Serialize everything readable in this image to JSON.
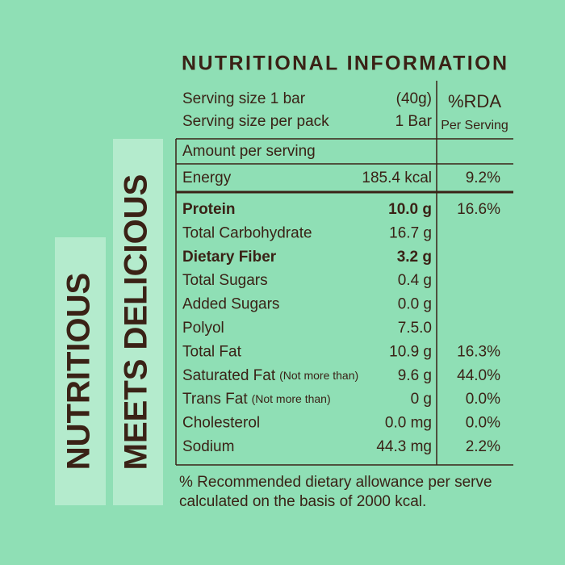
{
  "badges": [
    "NUTRITIOUS",
    "MEETS DELICIOUS"
  ],
  "title": "NUTRITIONAL INFORMATION",
  "serving": {
    "rows": [
      {
        "label": "Serving size 1 bar",
        "amount": "(40g)"
      },
      {
        "label": "Serving size per pack",
        "amount": "1 Bar"
      }
    ],
    "rda_header": "%RDA",
    "rda_subheader": "Per Serving"
  },
  "amount_header": "Amount per serving",
  "energy": {
    "name": "Energy",
    "amount": "185.4 kcal",
    "rda": "9.2%"
  },
  "rows": [
    {
      "name": "Protein",
      "amount": "10.0 g",
      "rda": "16.6%",
      "bold": true
    },
    {
      "name": "Total Carbohydrate",
      "amount": "16.7 g"
    },
    {
      "name": "Dietary Fiber",
      "amount": "3.2 g",
      "bold": true
    },
    {
      "name": "Total Sugars",
      "amount": "0.4 g"
    },
    {
      "name": "Added Sugars",
      "amount": "0.0 g"
    },
    {
      "name": "Polyol",
      "amount": "7.5.0"
    },
    {
      "name": "Total Fat",
      "amount": "10.9 g",
      "rda": "16.3%"
    },
    {
      "name": "Saturated Fat",
      "note": "(Not more than)",
      "amount": "9.6 g",
      "rda": "44.0%"
    },
    {
      "name": "Trans Fat",
      "note": "(Not more than)",
      "amount": "0 g",
      "rda": "0.0%"
    },
    {
      "name": "Cholesterol",
      "amount": "0.0 mg",
      "rda": "0.0%"
    },
    {
      "name": "Sodium",
      "amount": "44.3 mg",
      "rda": "2.2%"
    }
  ],
  "footnote": [
    "% Recommended dietary allowance per serve",
    "calculated on the basis of 2000 kcal."
  ]
}
